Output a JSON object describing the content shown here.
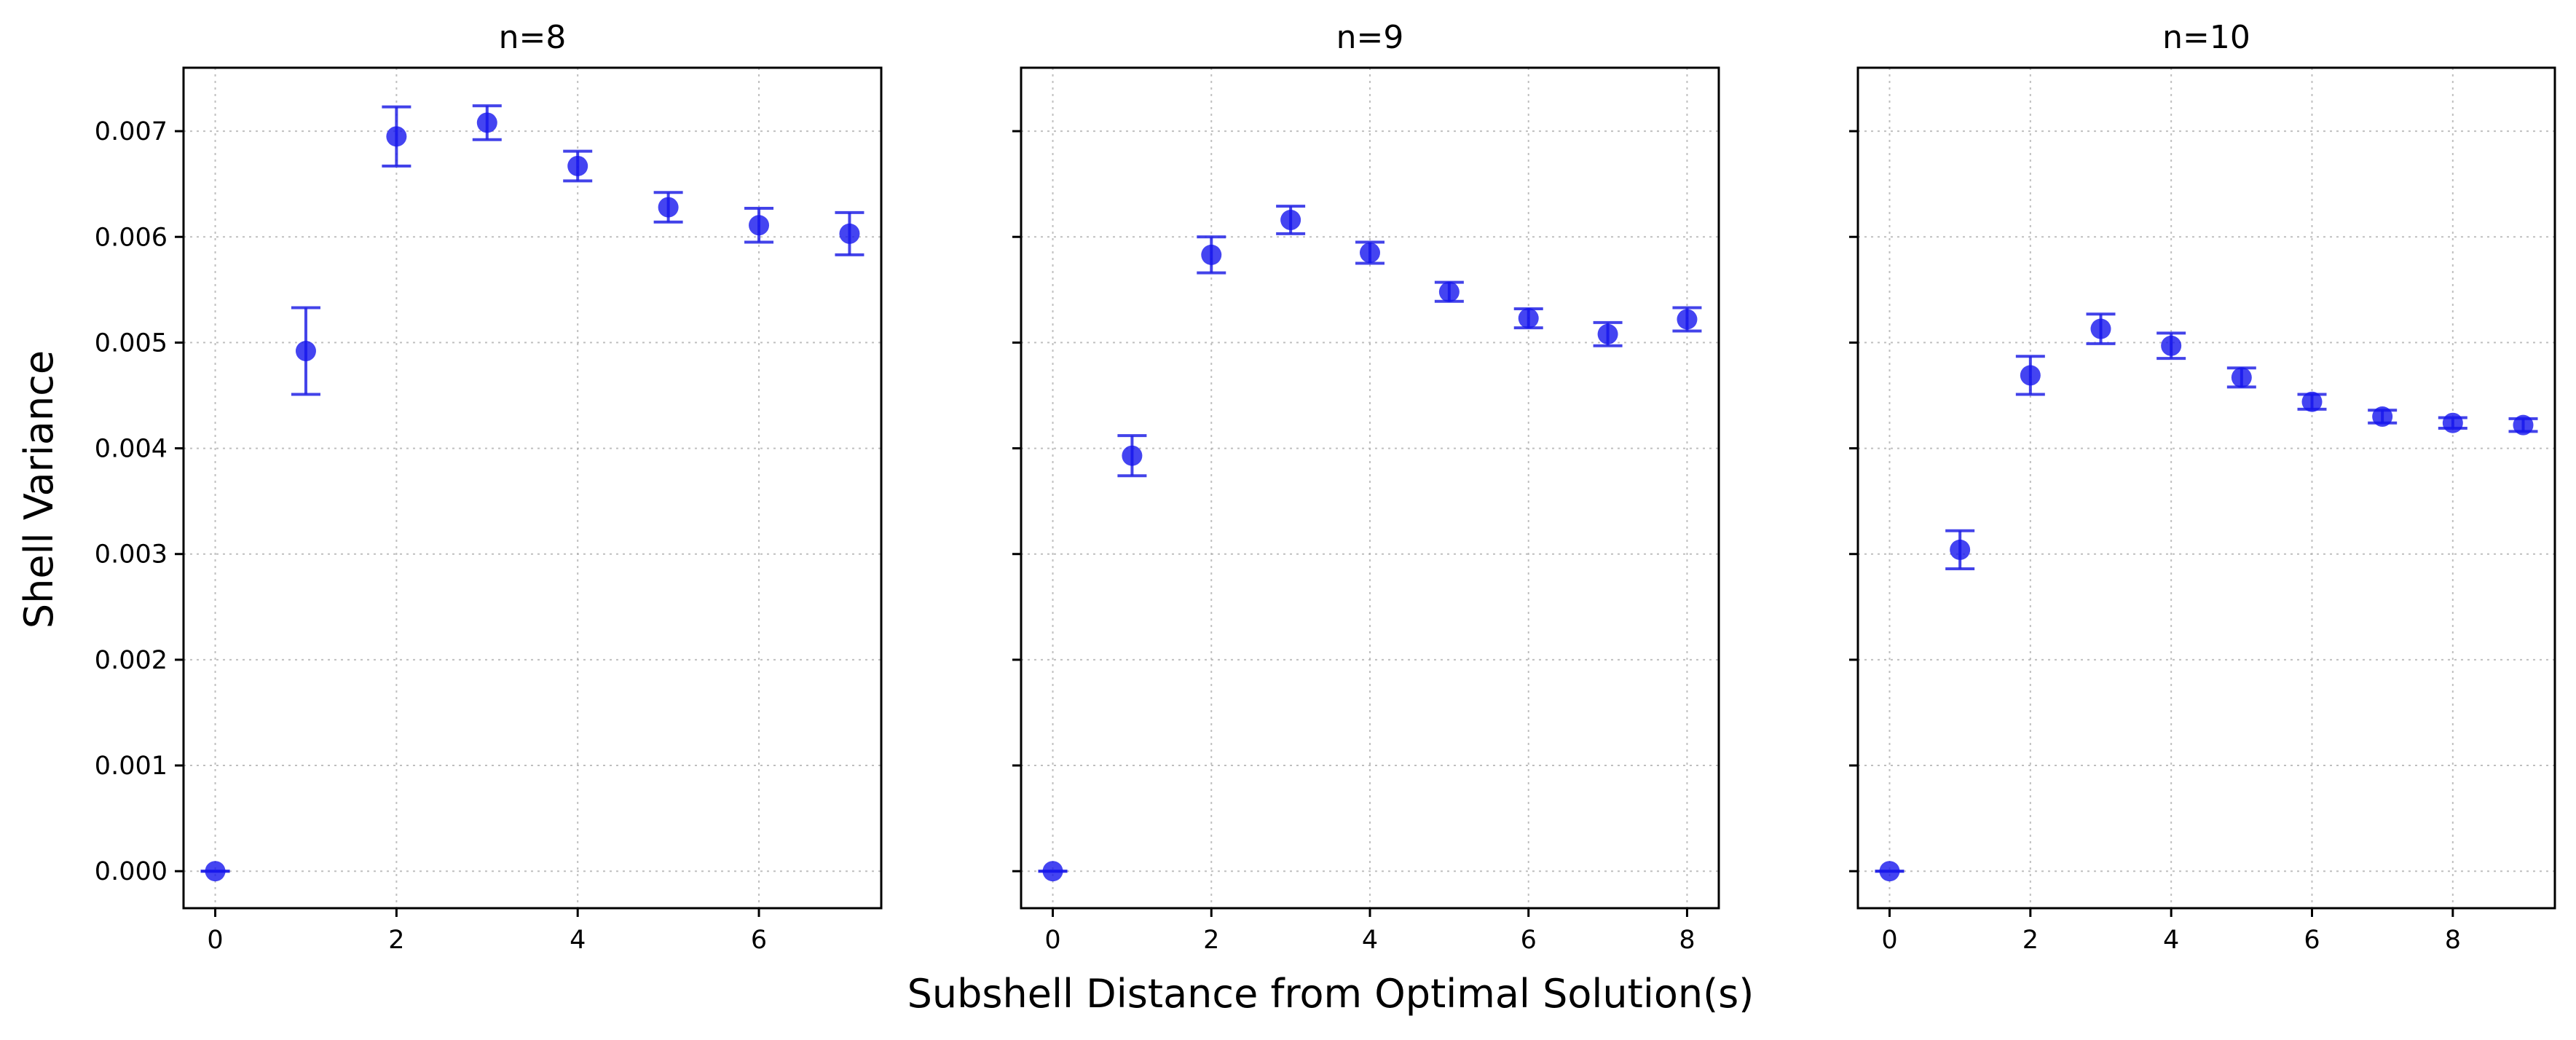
{
  "figure": {
    "xlabel": "Subshell Distance from Optimal Solution(s)",
    "ylabel": "Shell Variance"
  },
  "chart_data": [
    {
      "type": "scatter",
      "title": "n=8",
      "x": [
        0,
        1,
        2,
        3,
        4,
        5,
        6,
        7
      ],
      "y": [
        0.0,
        0.00492,
        0.00695,
        0.00708,
        0.00667,
        0.00628,
        0.00611,
        0.00603
      ],
      "err": [
        0.0,
        0.00041,
        0.00028,
        0.00016,
        0.00014,
        0.00014,
        0.00016,
        0.0002
      ],
      "xticks": [
        "0",
        "2",
        "4",
        "6"
      ],
      "xtick_values": [
        0,
        2,
        4,
        6
      ],
      "yticks": [
        "0.000",
        "0.001",
        "0.002",
        "0.003",
        "0.004",
        "0.005",
        "0.006",
        "0.007"
      ],
      "ytick_values": [
        0.0,
        0.001,
        0.002,
        0.003,
        0.004,
        0.005,
        0.006,
        0.007
      ],
      "xlim": [
        -0.35,
        7.35
      ],
      "ylim": [
        -0.00035,
        0.0076
      ],
      "grid": true,
      "show_ytick_labels": true,
      "marker_color": "#1515ee"
    },
    {
      "type": "scatter",
      "title": "n=9",
      "x": [
        0,
        1,
        2,
        3,
        4,
        5,
        6,
        7,
        8
      ],
      "y": [
        0.0,
        0.00393,
        0.00583,
        0.00616,
        0.00585,
        0.00548,
        0.00523,
        0.00508,
        0.00522
      ],
      "err": [
        0.0,
        0.00019,
        0.00017,
        0.00013,
        0.0001,
        9e-05,
        9e-05,
        0.00011,
        0.00011
      ],
      "xticks": [
        "0",
        "2",
        "4",
        "6",
        "8"
      ],
      "xtick_values": [
        0,
        2,
        4,
        6,
        8
      ],
      "yticks": [],
      "ytick_values": [
        0.0,
        0.001,
        0.002,
        0.003,
        0.004,
        0.005,
        0.006,
        0.007
      ],
      "xlim": [
        -0.4,
        8.4
      ],
      "ylim": [
        -0.00035,
        0.0076
      ],
      "grid": true,
      "show_ytick_labels": false,
      "marker_color": "#1515ee"
    },
    {
      "type": "scatter",
      "title": "n=10",
      "x": [
        0,
        1,
        2,
        3,
        4,
        5,
        6,
        7,
        8,
        9
      ],
      "y": [
        0.0,
        0.00304,
        0.00469,
        0.00513,
        0.00497,
        0.00467,
        0.00444,
        0.0043,
        0.00424,
        0.00422
      ],
      "err": [
        0.0,
        0.00018,
        0.00018,
        0.00014,
        0.00012,
        9e-05,
        7e-05,
        6e-05,
        5e-05,
        6e-05
      ],
      "xticks": [
        "0",
        "2",
        "4",
        "6",
        "8"
      ],
      "xtick_values": [
        0,
        2,
        4,
        6,
        8
      ],
      "yticks": [],
      "ytick_values": [
        0.0,
        0.001,
        0.002,
        0.003,
        0.004,
        0.005,
        0.006,
        0.007
      ],
      "xlim": [
        -0.45,
        9.45
      ],
      "ylim": [
        -0.00035,
        0.0076
      ],
      "grid": true,
      "show_ytick_labels": false,
      "marker_color": "#1515ee"
    }
  ]
}
